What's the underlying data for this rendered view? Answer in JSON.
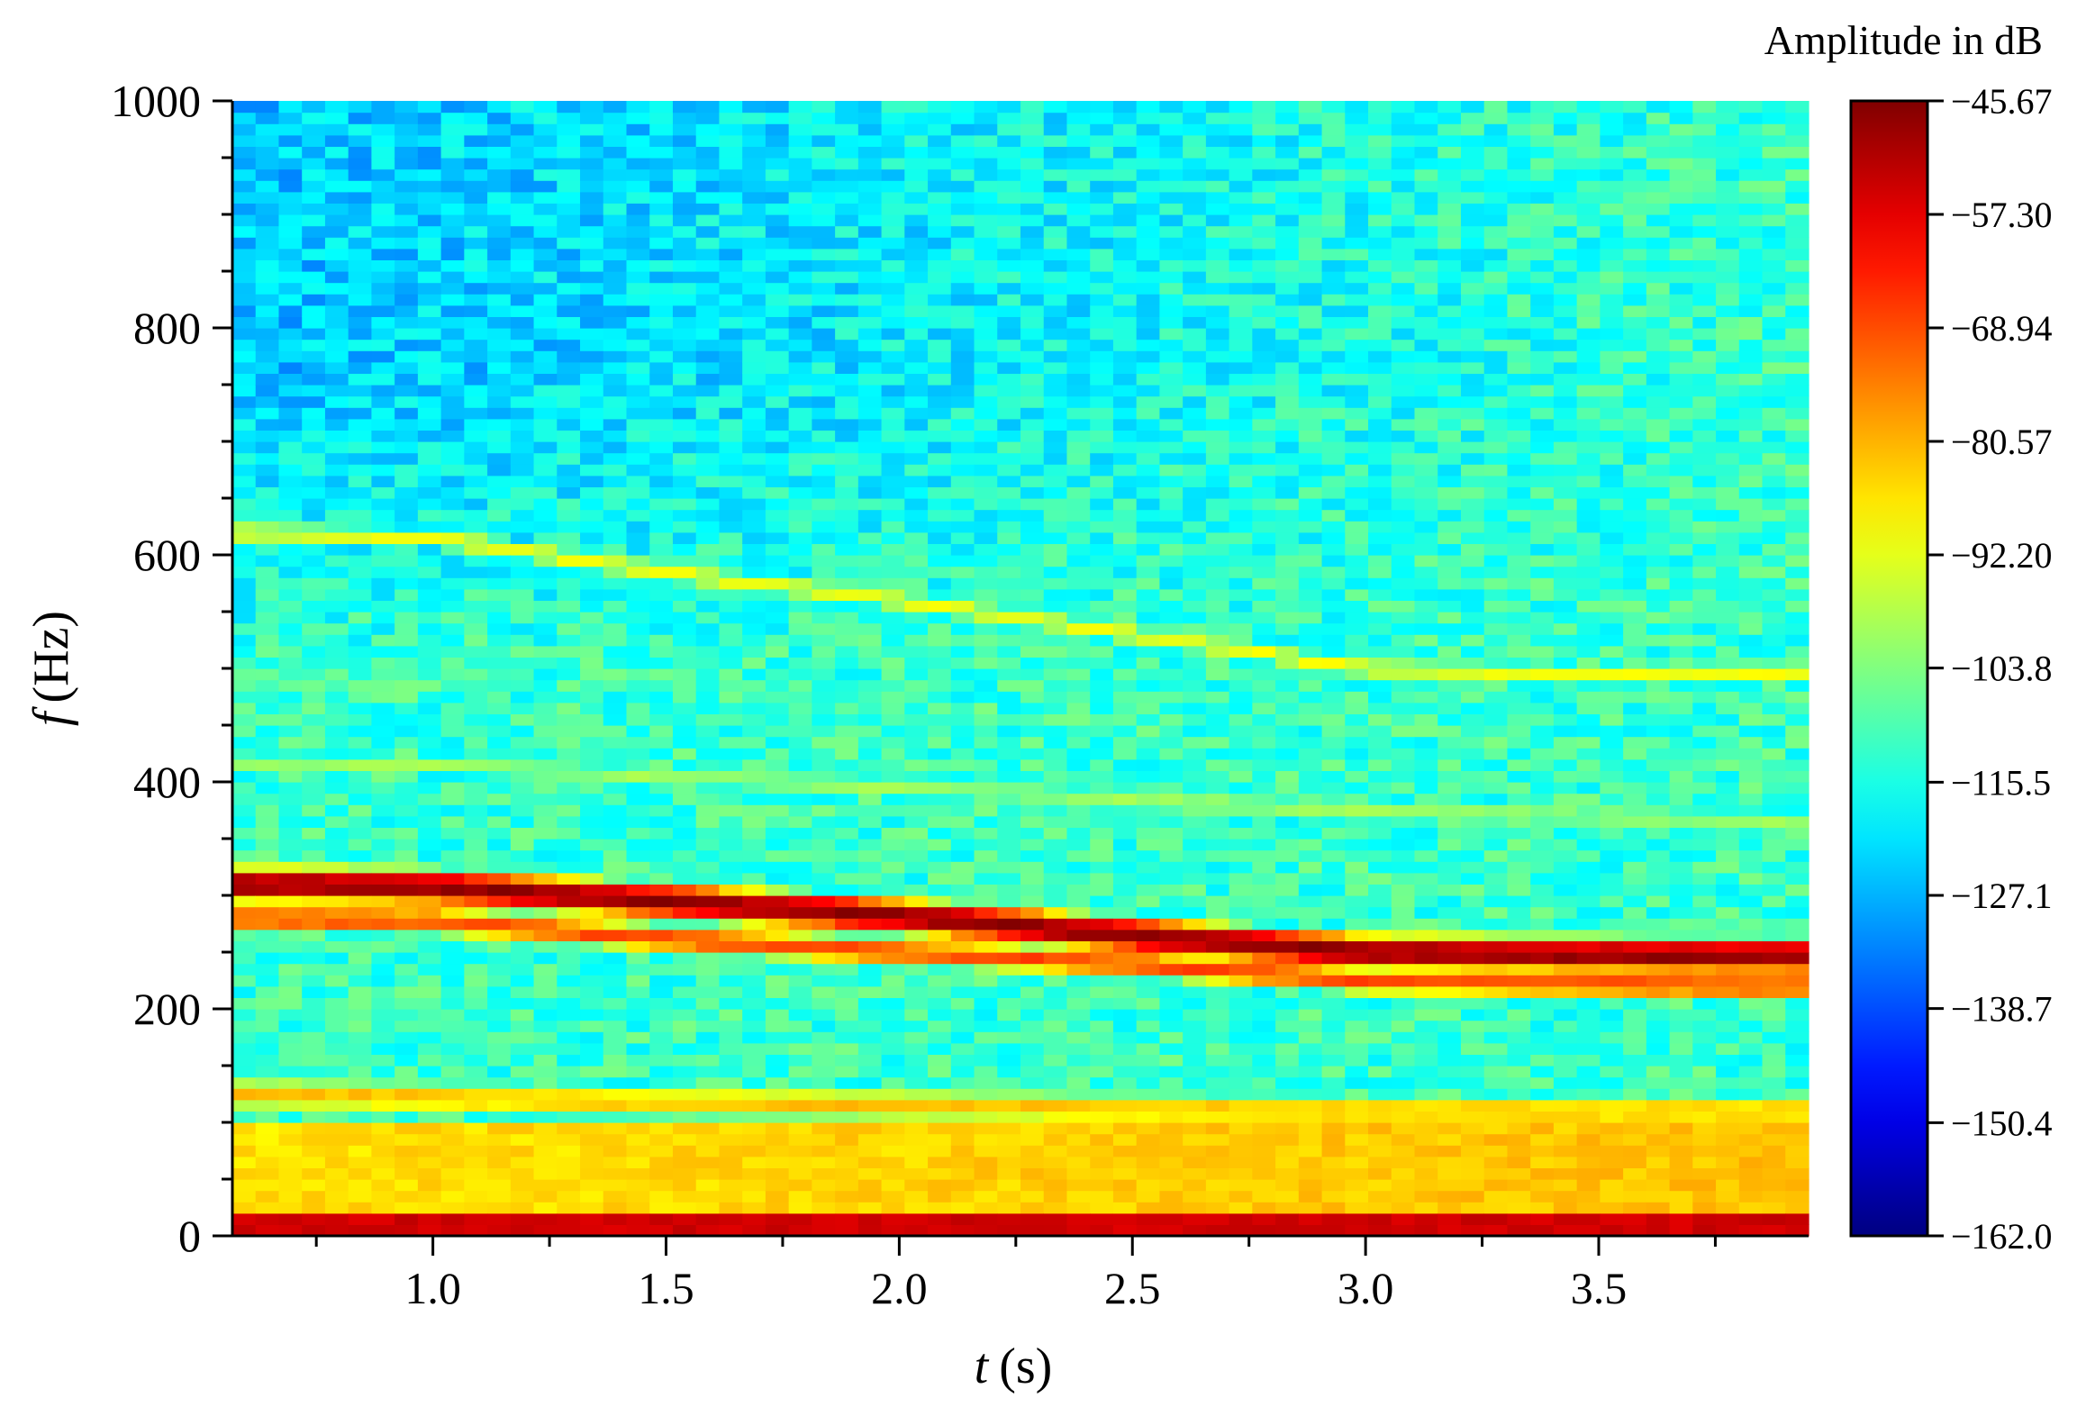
{
  "chart_data": {
    "type": "heatmap",
    "title": "",
    "xlabel": "(s)",
    "xlabel_var": "t",
    "ylabel": "(Hz)",
    "ylabel_var": "f",
    "xlim": [
      0.57,
      3.95
    ],
    "ylim": [
      0,
      1000
    ],
    "xticks": [
      1.0,
      1.5,
      2.0,
      2.5,
      3.0,
      3.5
    ],
    "xtick_labels": [
      "1.0",
      "1.5",
      "2.0",
      "2.5",
      "3.0",
      "3.5"
    ],
    "yticks": [
      0,
      200,
      400,
      600,
      800,
      1000
    ],
    "ytick_labels": [
      "0",
      "200",
      "400",
      "600",
      "800",
      "1000"
    ],
    "grid": false,
    "colormap": "jet",
    "colorbar": {
      "title": "Amplitude in dB",
      "min": -162.0,
      "max": -45.67,
      "tick_values": [
        -45.67,
        -57.3,
        -68.94,
        -80.57,
        -92.2,
        -103.8,
        -115.5,
        -127.1,
        -138.7,
        -150.4,
        -162.0
      ],
      "tick_labels": [
        "−45.67",
        "−57.30",
        "−68.94",
        "−80.57",
        "−92.20",
        "−103.8",
        "−115.5",
        "−127.1",
        "−138.7",
        "−150.4",
        "−162.0"
      ]
    },
    "grid_resolution": {
      "time_bins": 68,
      "freq_bins": 100
    },
    "background_level_db": {
      "low_freq": -112,
      "high_freq_start": -125,
      "high_freq_end": -112
    },
    "ridges": [
      {
        "name": "fundamental",
        "t": [
          0.57,
          1.0,
          1.5,
          2.0,
          2.5,
          3.0,
          3.5,
          3.95
        ],
        "f": [
          310,
          308,
          295,
          282,
          265,
          250,
          248,
          247
        ],
        "peak_db": -47,
        "width_hz": 16
      },
      {
        "name": "lower sideband",
        "t": [
          0.57,
          1.0,
          1.5,
          2.0,
          2.5,
          3.0,
          3.5,
          3.95
        ],
        "f": [
          280,
          278,
          262,
          250,
          240,
          225,
          222,
          220
        ],
        "peak_db": -68,
        "width_hz": 14
      },
      {
        "name": "second harmonic",
        "t": [
          0.57,
          1.0,
          1.5,
          2.0,
          2.5,
          3.0,
          3.5,
          3.95
        ],
        "f": [
          620,
          615,
          585,
          560,
          530,
          500,
          495,
          495
        ],
        "peak_db": -90,
        "width_hz": 12
      },
      {
        "name": "band 415 Hz",
        "t": [
          0.57,
          1.0,
          1.5,
          2.0,
          2.5,
          3.0,
          3.5,
          3.95
        ],
        "f": [
          418,
          415,
          405,
          395,
          385,
          375,
          370,
          365
        ],
        "peak_db": -100,
        "width_hz": 14
      },
      {
        "name": "band 115 Hz",
        "t": [
          0.57,
          1.0,
          1.5,
          2.0,
          2.5,
          3.0,
          3.5,
          3.95
        ],
        "f": [
          125,
          122,
          118,
          115,
          112,
          110,
          110,
          110
        ],
        "peak_db": -82,
        "width_hz": 18
      },
      {
        "name": "DC band",
        "t": [
          0.57,
          3.95
        ],
        "f": [
          10,
          10
        ],
        "peak_db": -50,
        "width_hz": 16
      }
    ],
    "low_frequency_energy": {
      "f_max": 100,
      "db": -86
    }
  }
}
